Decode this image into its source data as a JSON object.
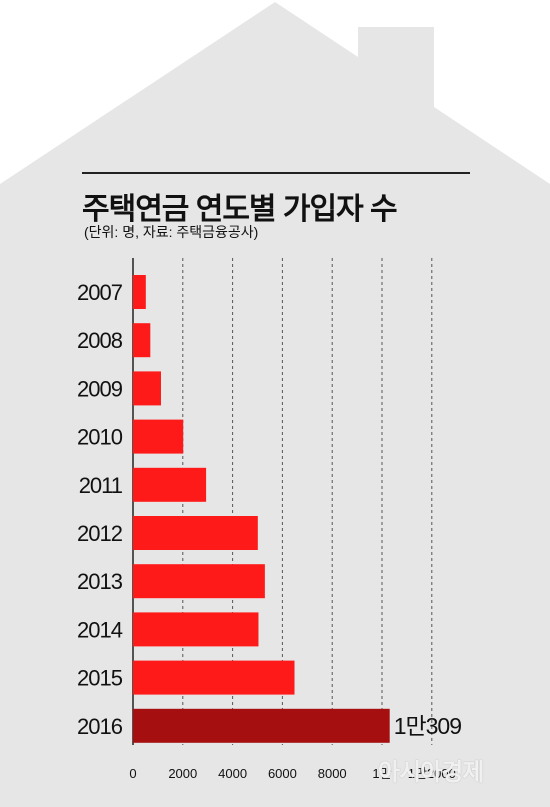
{
  "header": {
    "title": "주택연금 연도별 가입자 수",
    "subtitle": "(단위: 명, 자료: 주택금융공사)"
  },
  "colors": {
    "house": "#e6e6e6",
    "bar": "#ff1a1a",
    "highlight_bar": "#a50f0f",
    "grid": "#555555"
  },
  "chart_data": {
    "type": "bar",
    "orientation": "horizontal",
    "categories": [
      "2007",
      "2008",
      "2009",
      "2010",
      "2011",
      "2012",
      "2013",
      "2014",
      "2015",
      "2016"
    ],
    "values": [
      515,
      695,
      1124,
      2016,
      2936,
      5013,
      5296,
      5039,
      6486,
      10309
    ],
    "highlight_index": 9,
    "data_labels": [
      "",
      "",
      "",
      "",
      "",
      "",
      "",
      "",
      "",
      "1만309"
    ],
    "x_ticks": [
      0,
      2000,
      4000,
      6000,
      8000,
      10000,
      12000
    ],
    "x_tick_labels": [
      "0",
      "2000",
      "4000",
      "6000",
      "8000",
      "1만",
      "1만2000"
    ],
    "xlim": [
      0,
      12000
    ],
    "grid": "vertical dashed"
  },
  "watermark": "아시아경제"
}
